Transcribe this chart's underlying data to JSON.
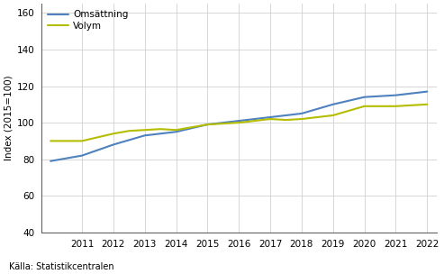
{
  "title": "",
  "ylabel": "Index (2015=100)",
  "source": "Källa: Statistikcentralen",
  "x_years": [
    2010.0,
    2010.5,
    2011.0,
    2011.5,
    2012.0,
    2012.5,
    2013.0,
    2013.5,
    2014.0,
    2014.5,
    2015.0,
    2015.5,
    2016.0,
    2016.5,
    2017.0,
    2017.5,
    2018.0,
    2018.5,
    2019.0,
    2019.5,
    2020.0,
    2020.5,
    2021.0,
    2021.5,
    2022.0
  ],
  "omsattning": [
    79,
    80.5,
    82,
    85,
    88,
    90.5,
    93,
    94,
    95,
    97,
    99,
    100,
    101,
    102,
    103,
    104,
    105,
    107.5,
    110,
    112,
    114,
    114.5,
    115,
    116,
    117
  ],
  "volym": [
    90,
    90,
    90,
    92,
    94,
    95.5,
    96,
    96.5,
    96,
    97.5,
    99,
    99.5,
    100,
    101,
    102,
    101.5,
    102,
    103,
    104,
    106.5,
    109,
    109,
    109,
    109.5,
    110
  ],
  "omsattning_color": "#4e81bd",
  "volym_color": "#b5bd00",
  "line_width": 1.5,
  "ylim": [
    40,
    165
  ],
  "yticks": [
    40,
    60,
    80,
    100,
    120,
    140,
    160
  ],
  "xtick_labels": [
    "2011",
    "2012",
    "2013",
    "2014",
    "2015",
    "2016",
    "2017",
    "2018",
    "2019",
    "2020",
    "2021",
    "2022"
  ],
  "xtick_positions": [
    2011,
    2012,
    2013,
    2014,
    2015,
    2016,
    2017,
    2018,
    2019,
    2020,
    2021,
    2022
  ],
  "xlim": [
    2009.7,
    2022.3
  ],
  "legend_labels": [
    "Omsättning",
    "Volym"
  ],
  "background_color": "#ffffff",
  "grid_color": "#d0d0d0",
  "font_size_axis": 7.5,
  "font_size_legend": 7.5,
  "font_size_source": 7.0,
  "font_size_ylabel": 7.5
}
